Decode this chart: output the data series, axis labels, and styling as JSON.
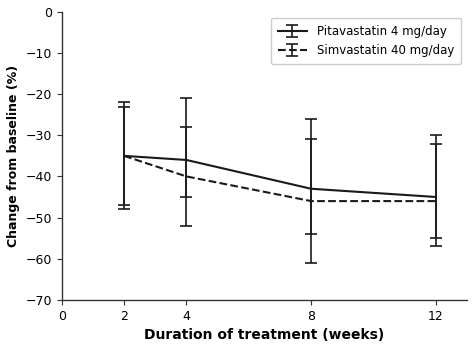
{
  "weeks": [
    2,
    4,
    8,
    12
  ],
  "pita_mean": [
    -35,
    -36,
    -43,
    -45
  ],
  "pita_upper": [
    -23,
    -27,
    -32,
    -35
  ],
  "pita_lower": [
    -47,
    -51,
    -60,
    -60
  ],
  "simva_mean": [
    -35,
    -40,
    -46,
    -46
  ],
  "simva_upper": [
    -22,
    -28,
    -31,
    -35
  ],
  "simva_lower": [
    -48,
    -52,
    -61,
    -60
  ],
  "xlabel": "Duration of treatment (weeks)",
  "ylabel": "Change from baseline (%)",
  "xlim": [
    0,
    13
  ],
  "ylim": [
    -70,
    0
  ],
  "xticks": [
    0,
    2,
    4,
    8,
    12
  ],
  "yticks": [
    0,
    -10,
    -20,
    -30,
    -40,
    -50,
    -60,
    -70
  ],
  "legend_pita": "Pitavastatin 4 mg/day",
  "legend_simva": "Simvastatin 40 mg/day",
  "line_color": "#1a1a1a",
  "bg_color": "#ffffff"
}
